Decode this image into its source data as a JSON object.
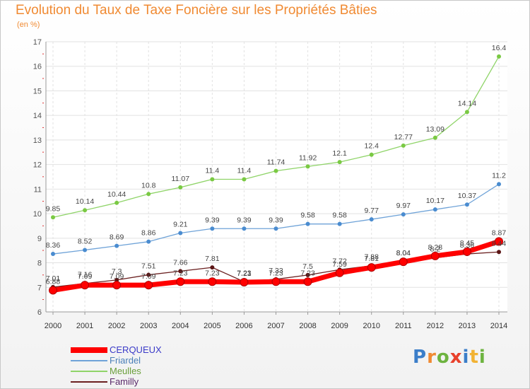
{
  "title": "Evolution du Taux de Taxe Foncière sur les Propriétés Bâties",
  "subtitle": "(en %)",
  "logo": {
    "text": "Proxiti",
    "colors": [
      "#3b7ec9",
      "#f08a32",
      "#6db33f",
      "#e8412c",
      "#3b7ec9",
      "#f2b233",
      "#6db33f"
    ]
  },
  "chart_data": {
    "type": "line",
    "x": [
      "2000",
      "2001",
      "2002",
      "2003",
      "2004",
      "2005",
      "2006",
      "2007",
      "2008",
      "2009",
      "2010",
      "2011",
      "2012",
      "2013",
      "2014"
    ],
    "ylim": [
      6,
      17
    ],
    "yticks": [
      "6",
      "7",
      "8",
      "9",
      "10",
      "11",
      "12",
      "13",
      "14",
      "15",
      "16",
      "17"
    ],
    "grid": true,
    "legend_position": "bottom-left",
    "series": [
      {
        "name": "Meulles",
        "color": "#8fd468",
        "marker": "#7ac943",
        "values": [
          9.85,
          10.14,
          10.44,
          10.8,
          11.07,
          11.4,
          11.4,
          11.74,
          11.92,
          12.1,
          12.4,
          12.77,
          13.09,
          14.14,
          16.4
        ],
        "labels": [
          "9.85",
          "10.14",
          "10.44",
          "10.8",
          "11.07",
          "11.4",
          "11.4",
          "11.74",
          "11.92",
          "12.1",
          "12.4",
          "12.77",
          "13.09",
          "14.14",
          "16.4"
        ]
      },
      {
        "name": "Friardel",
        "color": "#6fa3d8",
        "marker": "#4a8cd0",
        "values": [
          8.36,
          8.52,
          8.69,
          8.86,
          9.21,
          9.39,
          9.39,
          9.39,
          9.58,
          9.58,
          9.77,
          9.97,
          10.17,
          10.37,
          11.2
        ],
        "labels": [
          "8.36",
          "8.52",
          "8.69",
          "8.86",
          "9.21",
          "9.39",
          "9.39",
          "9.39",
          "9.58",
          "9.58",
          "9.77",
          "9.97",
          "10.17",
          "10.37",
          "11.2"
        ]
      },
      {
        "name": "Familly",
        "color": "#6b2020",
        "marker": "#5a1414",
        "values": [
          7.01,
          7.16,
          7.3,
          7.51,
          7.66,
          7.81,
          7.23,
          7.33,
          7.5,
          7.72,
          7.88,
          8.04,
          8.2,
          8.36,
          8.44
        ],
        "labels": [
          "7.01",
          "7.16",
          "7.3",
          "7.51",
          "7.66",
          "7.81",
          "7.23",
          "7.33",
          "7.5",
          "7.72",
          "7.88",
          "8.04",
          "8.2",
          "8.36",
          "8.44"
        ]
      },
      {
        "name": "CERQUEUX",
        "color": "#ff0000",
        "marker": "#ff0000",
        "values": [
          6.88,
          7.09,
          7.09,
          7.09,
          7.23,
          7.23,
          7.21,
          7.23,
          7.23,
          7.59,
          7.81,
          8.04,
          8.28,
          8.45,
          8.87
        ],
        "labels": [
          "6.88",
          "7.09",
          "7.09",
          "7.09",
          "7.23",
          "7.23",
          "7.21",
          "7.23",
          "7.23",
          "7.59",
          "7.81",
          "8.04",
          "8.28",
          "8.45",
          "8.87"
        ]
      }
    ],
    "legend_order": [
      "CERQUEUX",
      "Friardel",
      "Meulles",
      "Familly"
    ],
    "legend_colors": [
      "#ff0000",
      "#6fa3d8",
      "#8fd468",
      "#6b2020"
    ]
  }
}
